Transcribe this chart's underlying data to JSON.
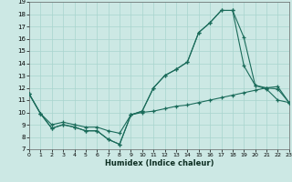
{
  "title": "",
  "xlabel": "Humidex (Indice chaleur)",
  "bg_color": "#cce8e4",
  "grid_color": "#a8d4ce",
  "line_color": "#1a6b5a",
  "xlim": [
    0,
    23
  ],
  "ylim": [
    7,
    19
  ],
  "xticks": [
    0,
    1,
    2,
    3,
    4,
    5,
    6,
    7,
    8,
    9,
    10,
    11,
    12,
    13,
    14,
    15,
    16,
    17,
    18,
    19,
    20,
    21,
    22,
    23
  ],
  "yticks": [
    7,
    8,
    9,
    10,
    11,
    12,
    13,
    14,
    15,
    16,
    17,
    18,
    19
  ],
  "series1_x": [
    0,
    1,
    2,
    3,
    4,
    5,
    6,
    7,
    8,
    9,
    10,
    11,
    12,
    13,
    14,
    15,
    16,
    17,
    18,
    19,
    20,
    21,
    22,
    23
  ],
  "series1_y": [
    11.5,
    9.9,
    8.7,
    9.0,
    8.8,
    8.5,
    8.5,
    7.8,
    7.4,
    9.8,
    10.1,
    12.0,
    13.0,
    13.5,
    14.1,
    16.5,
    17.3,
    18.3,
    18.3,
    13.8,
    12.2,
    11.9,
    11.0,
    10.8
  ],
  "series2_x": [
    0,
    1,
    2,
    3,
    4,
    5,
    6,
    7,
    8,
    9,
    10,
    11,
    12,
    13,
    14,
    15,
    16,
    17,
    18,
    19,
    20,
    21,
    22,
    23
  ],
  "series2_y": [
    11.5,
    9.9,
    8.7,
    9.0,
    8.8,
    8.5,
    8.5,
    7.8,
    7.4,
    9.8,
    10.1,
    12.0,
    13.0,
    13.5,
    14.1,
    16.5,
    17.3,
    18.3,
    18.3,
    16.1,
    12.2,
    12.0,
    11.9,
    10.8
  ],
  "series3_x": [
    0,
    1,
    2,
    3,
    4,
    5,
    6,
    7,
    8,
    9,
    10,
    11,
    12,
    13,
    14,
    15,
    16,
    17,
    18,
    19,
    20,
    21,
    22,
    23
  ],
  "series3_y": [
    11.5,
    9.9,
    9.0,
    9.2,
    9.0,
    8.8,
    8.8,
    8.5,
    8.3,
    9.8,
    10.0,
    10.1,
    10.3,
    10.5,
    10.6,
    10.8,
    11.0,
    11.2,
    11.4,
    11.6,
    11.8,
    12.0,
    12.1,
    10.8
  ]
}
